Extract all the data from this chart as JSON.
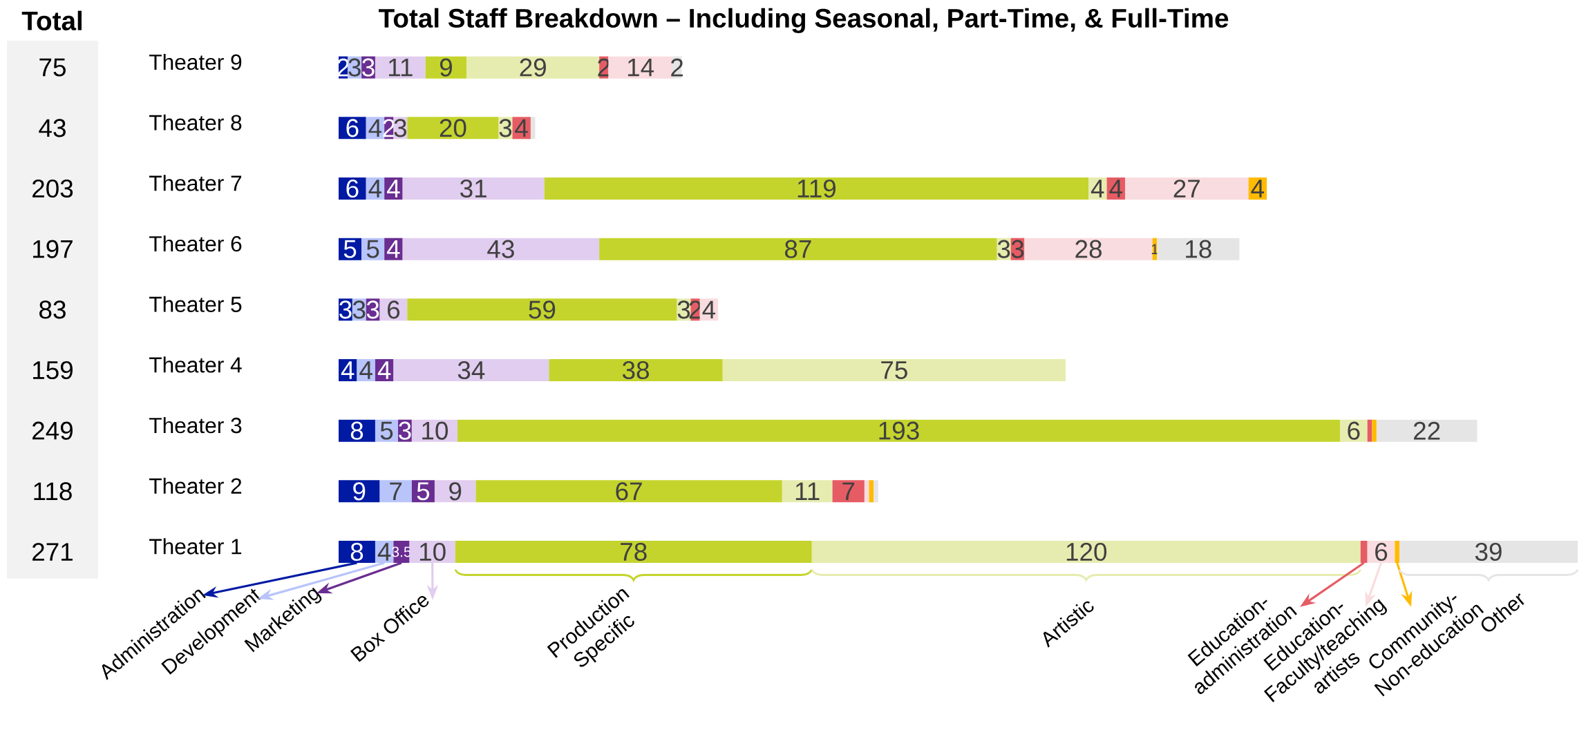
{
  "chart_data": {
    "type": "bar",
    "orientation": "horizontal",
    "stacked": true,
    "title": "Total Staff Breakdown – Including Seasonal, Part-Time, & Full-Time",
    "annotations": [
      "Total",
      "75",
      "43",
      "203",
      "197",
      "83",
      "159",
      "249",
      "118",
      "271"
    ],
    "categories": [
      "Theater 9",
      "Theater 8",
      "Theater 7",
      "Theater 6",
      "Theater 5",
      "Theater 4",
      "Theater 3",
      "Theater 2",
      "Theater 1"
    ],
    "legend": "bottom",
    "series": [
      {
        "name": "Administration",
        "color": "#001aa3",
        "values": [
          2,
          6,
          6,
          5,
          3,
          4,
          8,
          9,
          8
        ],
        "value_labels": [
          "2",
          "6",
          "6",
          "5",
          "3",
          "4",
          "8",
          "9",
          "8"
        ]
      },
      {
        "name": "Development",
        "color": "#b8c4fa",
        "values": [
          3,
          4,
          4,
          5,
          3,
          4,
          5,
          7,
          4
        ],
        "value_labels": [
          "3",
          "4",
          "4",
          "5",
          "3",
          "4",
          "5",
          "7",
          "4"
        ]
      },
      {
        "name": "Marketing",
        "color": "#6a2d91",
        "values": [
          3,
          2,
          4,
          4,
          3,
          4,
          3,
          5,
          3.5
        ],
        "value_labels": [
          "3",
          "2",
          "4",
          "4",
          "3",
          "4",
          "3",
          "5",
          "3.5"
        ]
      },
      {
        "name": "Box Office",
        "color": "#e1cdef",
        "values": [
          11,
          3,
          31,
          43,
          6,
          34,
          10,
          9,
          10
        ],
        "value_labels": [
          "11",
          "3",
          "31",
          "43",
          "6",
          "34",
          "10",
          "9",
          "10"
        ]
      },
      {
        "name": "Production Specific",
        "color": "#c4d42d",
        "values": [
          9,
          20,
          119,
          87,
          59,
          38,
          193,
          67,
          78
        ],
        "value_labels": [
          "9",
          "20",
          "119",
          "87",
          "59",
          "38",
          "193",
          "67",
          "78"
        ]
      },
      {
        "name": "Artistic",
        "color": "#e6ecaf",
        "values": [
          29,
          3,
          4,
          3,
          3,
          75,
          6,
          11,
          120
        ],
        "value_labels": [
          "29",
          "3",
          "4",
          "3",
          "3",
          "75",
          "6",
          "11",
          "120"
        ]
      },
      {
        "name": "Education-administration",
        "color": "#e65c64",
        "values": [
          2,
          4,
          4,
          3,
          2,
          null,
          1,
          7,
          1.5
        ],
        "value_labels": [
          "2",
          "4",
          "4",
          "3",
          "2",
          null,
          null,
          "7",
          null
        ]
      },
      {
        "name": "Education-Faculty/teaching artists",
        "color": "#f9dcdf",
        "values": [
          14,
          null,
          27,
          28,
          4,
          null,
          null,
          1,
          6
        ],
        "value_labels": [
          "14",
          null,
          "27",
          "28",
          "4",
          null,
          null,
          null,
          "6"
        ]
      },
      {
        "name": "Community-Non-education",
        "color": "#ffbb00",
        "values": [
          null,
          null,
          4,
          1,
          null,
          null,
          1,
          1,
          1
        ],
        "value_labels": [
          null,
          null,
          "4",
          "1",
          null,
          null,
          null,
          null,
          null
        ]
      },
      {
        "name": "Other",
        "color": "#e5e5e5",
        "values": [
          2,
          1,
          null,
          18,
          null,
          null,
          22,
          1,
          39
        ],
        "value_labels": [
          "2",
          null,
          null,
          "18",
          null,
          null,
          "22",
          null,
          "39"
        ]
      }
    ]
  }
}
